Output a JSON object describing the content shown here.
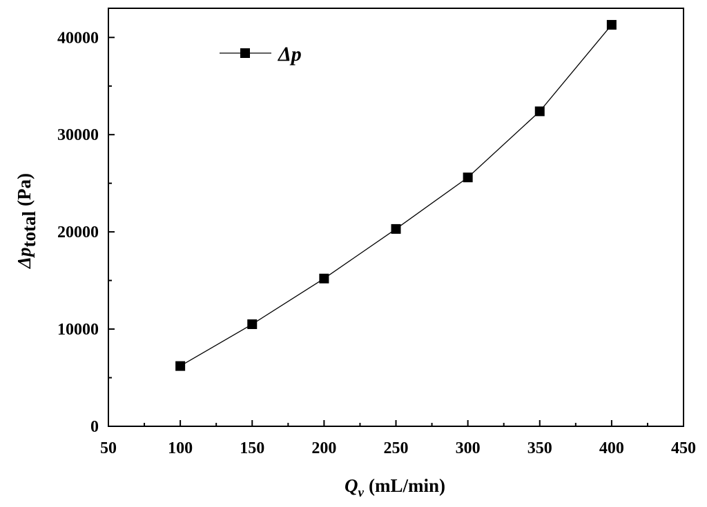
{
  "chart_data": {
    "type": "line",
    "x_axis": {
      "label_var": "Q",
      "label_sub": "v",
      "label_unit": "(mL/min)",
      "range": [
        50,
        450
      ],
      "ticks": [
        "50",
        "100",
        "150",
        "200",
        "250",
        "300",
        "350",
        "400",
        "450"
      ],
      "tick_values": [
        50,
        100,
        150,
        200,
        250,
        300,
        350,
        400,
        450
      ]
    },
    "y_axis": {
      "label_prefix": "Δp",
      "label_sub": "total",
      "label_unit": "(Pa)",
      "range": [
        0,
        43000
      ],
      "ticks": [
        "0",
        "10000",
        "20000",
        "30000",
        "40000"
      ],
      "tick_values": [
        0,
        10000,
        20000,
        30000,
        40000
      ]
    },
    "series": [
      {
        "name": "Δp",
        "marker": "square",
        "color": "#000000",
        "x": [
          100,
          150,
          200,
          250,
          300,
          350,
          400
        ],
        "y": [
          6200,
          10500,
          15200,
          20300,
          25600,
          32400,
          41300
        ]
      }
    ],
    "legend_position": "top-left",
    "grid": false
  }
}
